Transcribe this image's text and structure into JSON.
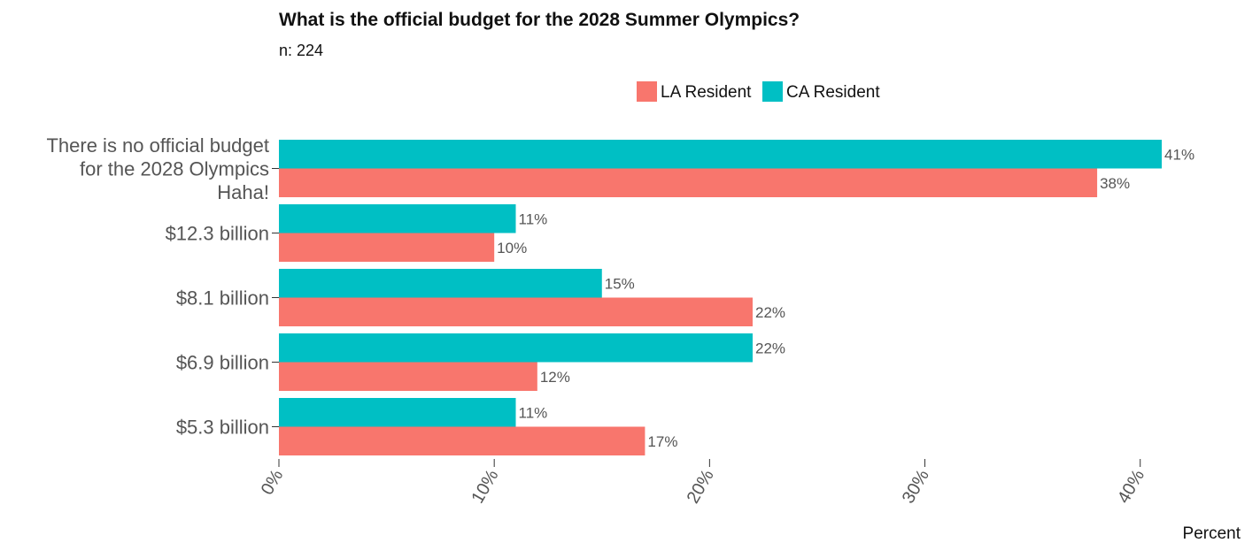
{
  "chart_data": {
    "type": "bar",
    "orientation": "horizontal",
    "title": "What is the official budget for the 2028 Summer Olympics?",
    "subtitle": "n:  224",
    "categories": [
      [
        "There is no official budget",
        "for the 2028 Olympics",
        "Haha!"
      ],
      [
        "$12.3 billion"
      ],
      [
        "$8.1 billion"
      ],
      [
        "$6.9 billion"
      ],
      [
        "$5.3 billion"
      ]
    ],
    "series": [
      {
        "name": "CA Resident",
        "color": "#00BFC4",
        "values": [
          41,
          11,
          15,
          22,
          11
        ]
      },
      {
        "name": "LA Resident",
        "color": "#F8766D",
        "values": [
          38,
          10,
          22,
          12,
          17
        ]
      }
    ],
    "legend": {
      "position": "top",
      "order": [
        "LA Resident",
        "CA Resident"
      ]
    },
    "value_labels": [
      [
        "41%",
        "38%"
      ],
      [
        "11%",
        "10%"
      ],
      [
        "15%",
        "22%"
      ],
      [
        "22%",
        "12%"
      ],
      [
        "11%",
        "17%"
      ]
    ],
    "xlim": [
      0,
      44
    ],
    "xticks": [
      0,
      10,
      20,
      30,
      40
    ],
    "xtick_labels": [
      "0%",
      "10%",
      "20%",
      "30%",
      "40%"
    ],
    "xlabel": "Percent",
    "ylabel": "",
    "grid": false
  }
}
